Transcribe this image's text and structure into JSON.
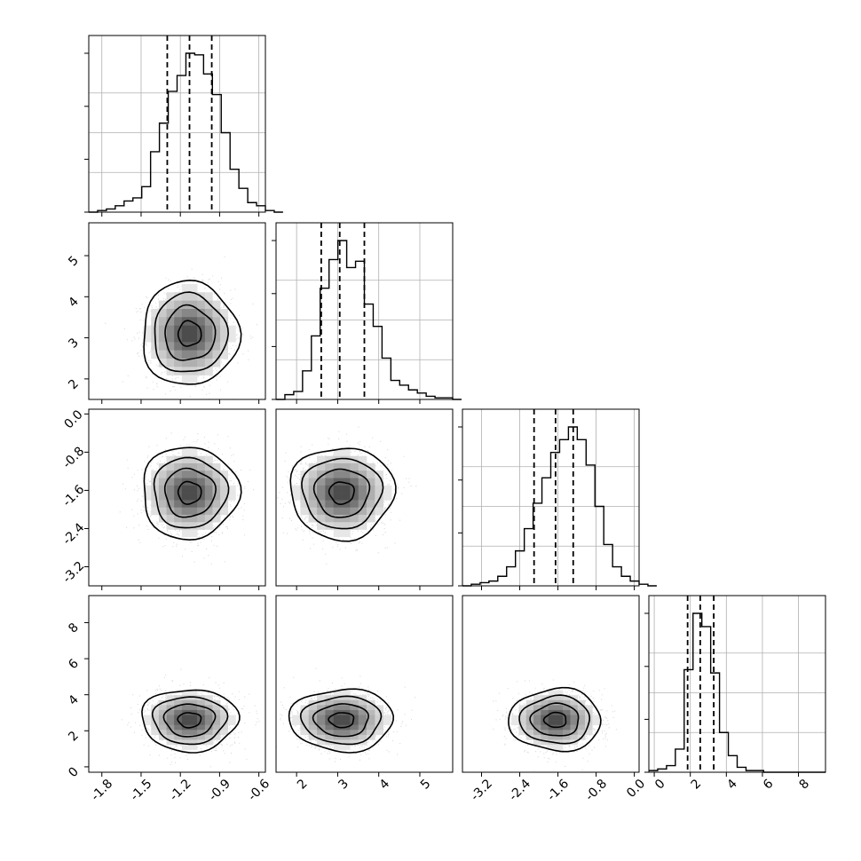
{
  "chart_data": {
    "type": "corner",
    "n_params": 4,
    "quantile_lines": "dashed at 16%, 50%, 84%",
    "grid": true,
    "colors": {
      "line": "#000000",
      "grid": "#b0b0b0",
      "scatter": "#9a9a9a",
      "hist2d_max": "#3c3c3c"
    },
    "params": [
      {
        "range": [
          -1.9,
          -0.55
        ],
        "ticks": [
          "-1.8",
          "-1.5",
          "-1.2",
          "-0.9",
          "-0.6"
        ],
        "tick_values": [
          -1.8,
          -1.5,
          -1.2,
          -0.9,
          -0.6
        ],
        "mean": -1.13,
        "sd": 0.16,
        "quantiles": [
          -1.3,
          -1.13,
          -0.96
        ],
        "hist_edges_start": -1.9,
        "hist_bin": 0.0675,
        "hist_counts": [
          0,
          1,
          2,
          4,
          7,
          9,
          16,
          38,
          56,
          76,
          86,
          100,
          99,
          87,
          74,
          50,
          27,
          15,
          6,
          4,
          1,
          0
        ]
      },
      {
        "range": [
          1.5,
          5.8
        ],
        "ticks": [
          "2",
          "3",
          "4",
          "5"
        ],
        "tick_values": [
          2,
          3,
          4,
          5
        ],
        "mean": 3.1,
        "sd": 0.55,
        "quantiles": [
          2.6,
          3.05,
          3.65
        ],
        "hist_edges_start": 1.5,
        "hist_bin": 0.215,
        "hist_counts": [
          0,
          3,
          5,
          18,
          40,
          70,
          88,
          100,
          83,
          87,
          60,
          46,
          26,
          12,
          9,
          6,
          4,
          2,
          1,
          1,
          0
        ]
      },
      {
        "range": [
          -3.6,
          0.1
        ],
        "ticks": [
          "0.0",
          "-0.8",
          "-1.6",
          "-2.4",
          "-3.2"
        ],
        "tick_values": [
          0.0,
          -0.8,
          -1.6,
          -2.4,
          -3.2
        ],
        "mean": -1.65,
        "sd": 0.42,
        "quantiles": [
          -2.1,
          -1.65,
          -1.28
        ],
        "hist_edges_start": -3.6,
        "hist_bin": 0.185,
        "hist_counts": [
          0,
          1,
          2,
          3,
          6,
          12,
          22,
          36,
          52,
          68,
          84,
          92,
          100,
          92,
          76,
          50,
          26,
          12,
          6,
          3,
          1,
          0
        ]
      },
      {
        "range": [
          -0.3,
          9.5
        ],
        "ticks": [
          "0",
          "2",
          "4",
          "6",
          "8"
        ],
        "tick_values": [
          0,
          2,
          4,
          6,
          8
        ],
        "mean": 2.6,
        "sd": 0.75,
        "quantiles": [
          1.85,
          2.55,
          3.3
        ],
        "hist_edges_start": -0.3,
        "hist_bin": 0.49,
        "hist_counts": [
          1,
          2,
          4,
          14,
          62,
          96,
          88,
          60,
          24,
          10,
          3,
          1,
          1,
          0,
          0,
          0,
          0,
          0,
          0,
          0
        ]
      }
    ],
    "y_tick_labels": {
      "row1": [
        "2",
        "3",
        "4",
        "5"
      ],
      "row2": [
        "0.0",
        "-0.8",
        "-1.6",
        "-2.4",
        "-3.2"
      ],
      "row3": [
        "0",
        "2",
        "4",
        "6",
        "8"
      ]
    },
    "x_tick_labels": {
      "col0": [
        "-1.8",
        "-1.5",
        "-1.2",
        "-0.9",
        "-0.6"
      ],
      "col1": [
        "2",
        "3",
        "4",
        "5"
      ],
      "col2": [
        "-3.2",
        "-2.4",
        "-1.6",
        "-0.8",
        "0.0"
      ],
      "col3": [
        "0",
        "2",
        "4",
        "6",
        "8"
      ]
    }
  }
}
